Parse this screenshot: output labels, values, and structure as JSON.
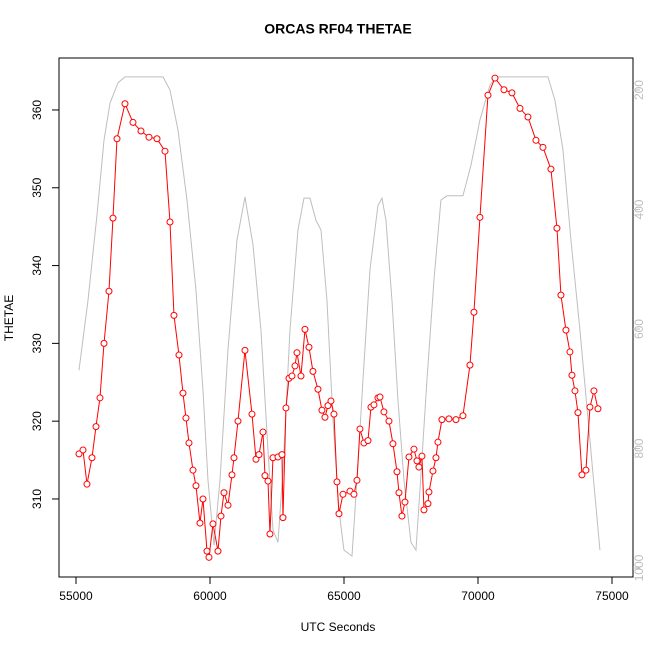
{
  "chart_data": {
    "type": "line",
    "title": "ORCAS RF04 THETAE",
    "x_label": "UTC Seconds",
    "y_label": "THETAE",
    "xlim": [
      54366,
      75784
    ],
    "xticks": [
      55000,
      60000,
      65000,
      70000,
      75000
    ],
    "ylim": [
      299.97,
      366.68
    ],
    "yticks": [
      310,
      320,
      330,
      340,
      350,
      360
    ],
    "y2lim": [
      1015,
      146.4
    ],
    "y2ticks": [
      200,
      400,
      600,
      800,
      1000
    ],
    "series": [
      {
        "color": "#bebebe",
        "axis": "y2",
        "markers": false,
        "x": [
          55112,
          55448,
          55784,
          56045,
          56269,
          56567,
          56828,
          58246,
          58507,
          58806,
          59141,
          59477,
          59738,
          59925,
          60149,
          60373,
          60671,
          61007,
          61305,
          61604,
          61902,
          62164,
          62350,
          62537,
          62723,
          62984,
          63283,
          63507,
          63731,
          63954,
          64141,
          64365,
          64589,
          64813,
          64999,
          65298,
          65484,
          65708,
          65969,
          66268,
          66417,
          66566,
          66790,
          67014,
          67238,
          67499,
          67685,
          67835,
          68096,
          68357,
          68618,
          68842,
          69439,
          69737,
          70073,
          70446,
          70670,
          72610,
          72871,
          73170,
          73468,
          73804,
          74177,
          74550
        ],
        "values": [
          669,
          552,
          409,
          284,
          222,
          188,
          178,
          178,
          200,
          267,
          384,
          535,
          702,
          853,
          962,
          853,
          635,
          451,
          379,
          459,
          602,
          803,
          936,
          957,
          836,
          602,
          434,
          381,
          381,
          418,
          434,
          552,
          752,
          903,
          970,
          980,
          853,
          685,
          501,
          393,
          381,
          418,
          552,
          719,
          853,
          957,
          970,
          869,
          685,
          518,
          384,
          377,
          377,
          326,
          250,
          192,
          178,
          178,
          217,
          300,
          451,
          602,
          786,
          970
        ]
      },
      {
        "color": "#ff0000",
        "markers": true,
        "x": [
          55112,
          55261,
          55410,
          55597,
          55746,
          55895,
          56045,
          56231,
          56380,
          56530,
          56828,
          57127,
          57425,
          57724,
          58022,
          58321,
          58507,
          58656,
          58843,
          58992,
          59104,
          59216,
          59365,
          59477,
          59626,
          59738,
          59888,
          59962,
          60111,
          60298,
          60410,
          60522,
          60671,
          60820,
          60895,
          61044,
          61305,
          61567,
          61716,
          61828,
          61977,
          62052,
          62164,
          62238,
          62350,
          62537,
          62686,
          62723,
          62835,
          62947,
          63059,
          63171,
          63246,
          63395,
          63544,
          63693,
          63842,
          64029,
          64178,
          64290,
          64402,
          64514,
          64626,
          64738,
          64813,
          64962,
          65223,
          65372,
          65484,
          65596,
          65745,
          65895,
          66006,
          66118,
          66268,
          66342,
          66491,
          66678,
          66827,
          66977,
          67051,
          67163,
          67275,
          67424,
          67611,
          67723,
          67797,
          67909,
          67984,
          68133,
          68170,
          68320,
          68432,
          68506,
          68655,
          68916,
          69178,
          69439,
          69700,
          69849,
          70073,
          70372,
          70633,
          70969,
          71267,
          71566,
          71864,
          72163,
          72424,
          72722,
          72946,
          73095,
          73282,
          73431,
          73506,
          73618,
          73730,
          73879,
          74028,
          74177,
          74327,
          74476
        ],
        "values": [
          315.8,
          316.3,
          311.9,
          315.3,
          319.3,
          323.0,
          330.0,
          336.7,
          346.1,
          356.3,
          360.8,
          358.4,
          357.3,
          356.5,
          356.3,
          354.7,
          345.6,
          333.6,
          328.5,
          323.6,
          320.4,
          317.2,
          313.7,
          311.7,
          306.9,
          310.0,
          303.3,
          302.5,
          306.8,
          303.3,
          307.8,
          310.8,
          309.2,
          313.1,
          315.3,
          320.0,
          329.1,
          320.9,
          315.1,
          315.7,
          318.6,
          313.0,
          312.3,
          305.5,
          315.3,
          315.4,
          315.7,
          307.6,
          321.7,
          325.5,
          325.8,
          327.1,
          328.8,
          325.8,
          331.8,
          329.5,
          326.4,
          324.1,
          321.4,
          320.5,
          322.0,
          322.6,
          320.9,
          312.2,
          308.1,
          310.6,
          311.0,
          310.6,
          312.4,
          319.0,
          317.2,
          317.5,
          321.8,
          322.1,
          323.0,
          323.1,
          321.2,
          320.0,
          317.1,
          313.5,
          310.8,
          307.8,
          309.6,
          315.4,
          316.4,
          314.9,
          314.1,
          315.5,
          308.6,
          309.4,
          310.9,
          313.6,
          315.3,
          317.3,
          320.2,
          320.3,
          320.2,
          320.7,
          327.2,
          334.0,
          346.2,
          361.9,
          364.1,
          362.6,
          362.2,
          360.2,
          359.1,
          356.1,
          355.2,
          352.4,
          344.8,
          336.2,
          331.7,
          328.9,
          325.9,
          323.9,
          321.1,
          313.1,
          313.7,
          321.8,
          323.9,
          321.6
        ]
      }
    ]
  }
}
